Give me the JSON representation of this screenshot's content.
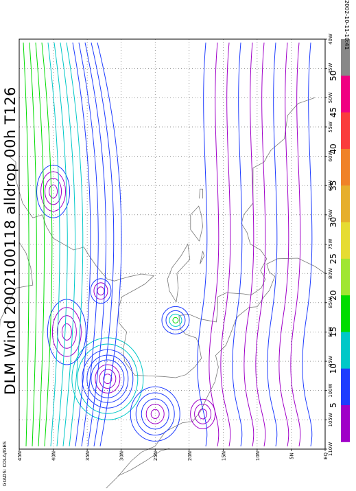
{
  "title": "DLM Wind  2002100118  alldrop  00h  T126",
  "credit": "GrADS: COLA/IGES",
  "timestamp": "2002-10-11-10:41",
  "map": {
    "lon_labels": [
      "110W",
      "105W",
      "100W",
      "95W",
      "90W",
      "85W",
      "80W",
      "75W",
      "70W",
      "65W",
      "60W",
      "55W",
      "50W",
      "45W",
      "40W"
    ],
    "lat_labels": [
      "EQ",
      "5N",
      "10N",
      "15N",
      "20N",
      "25N",
      "30N",
      "35N",
      "40N",
      "45N"
    ],
    "lon_range": [
      -110,
      -40
    ],
    "lat_range": [
      0,
      45
    ],
    "grid": true,
    "grid_style": "dotted",
    "field": "deep-layer-mean wind streamlines",
    "features": [
      {
        "type": "anticyclone",
        "lon": -98,
        "lat": 32
      },
      {
        "type": "cyclone",
        "lon": -88,
        "lat": 22
      },
      {
        "type": "circulation",
        "lon": -90,
        "lat": 38
      },
      {
        "type": "circulation",
        "lon": -104,
        "lat": 25
      },
      {
        "type": "circulation",
        "lon": -104,
        "lat": 18
      },
      {
        "type": "circulation",
        "lon": -66,
        "lat": 40
      }
    ]
  },
  "colorbar": {
    "labels": [
      "5",
      "10",
      "15",
      "20",
      "25",
      "30",
      "35",
      "40",
      "45",
      "50"
    ],
    "colors": [
      "#a000c8",
      "#1e3cff",
      "#00c8c8",
      "#00dc00",
      "#a0e632",
      "#e6dc32",
      "#e6af2d",
      "#f08228",
      "#fa3c3c",
      "#f00082",
      "#888888"
    ]
  }
}
